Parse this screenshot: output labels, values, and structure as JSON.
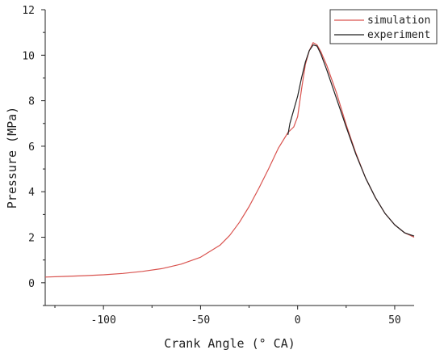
{
  "chart_data": {
    "type": "line",
    "title": "",
    "xlabel": "Crank Angle (° CA)",
    "ylabel": "Pressure (MPa)",
    "xlim": [
      -130,
      60
    ],
    "ylim": [
      -1,
      12
    ],
    "xticks": [
      -100,
      -50,
      0,
      50
    ],
    "xtick_labels": [
      "-100",
      "-50",
      "0",
      "50"
    ],
    "yticks": [
      0,
      2,
      4,
      6,
      8,
      10,
      12
    ],
    "ytick_labels": [
      "0",
      "2",
      "4",
      "6",
      "8",
      "10",
      "12"
    ],
    "grid": false,
    "legend_position": "top-right",
    "series": [
      {
        "name": "simulation",
        "color": "#d9534f",
        "x": [
          -130,
          -120,
          -110,
          -100,
          -90,
          -80,
          -70,
          -60,
          -50,
          -40,
          -35,
          -30,
          -25,
          -20,
          -15,
          -10,
          -5,
          -2,
          0,
          2,
          4,
          6,
          8,
          10,
          12,
          15,
          20,
          25,
          30,
          35,
          40,
          45,
          50,
          55,
          60
        ],
        "y": [
          0.25,
          0.28,
          0.31,
          0.35,
          0.41,
          0.5,
          0.62,
          0.82,
          1.12,
          1.65,
          2.08,
          2.65,
          3.35,
          4.15,
          5.0,
          5.9,
          6.6,
          6.85,
          7.3,
          8.5,
          9.6,
          10.2,
          10.55,
          10.45,
          10.15,
          9.55,
          8.35,
          6.95,
          5.7,
          4.6,
          3.75,
          3.05,
          2.55,
          2.2,
          2.0
        ]
      },
      {
        "name": "experiment",
        "color": "#222222",
        "x": [
          -5,
          -4,
          -3,
          -2,
          0,
          2,
          4,
          6,
          8,
          10,
          12,
          15,
          20,
          25,
          30,
          35,
          40,
          45,
          50,
          55,
          60
        ],
        "y": [
          6.5,
          7.0,
          7.3,
          7.6,
          8.2,
          9.0,
          9.7,
          10.2,
          10.45,
          10.4,
          10.05,
          9.35,
          8.1,
          6.85,
          5.65,
          4.6,
          3.75,
          3.05,
          2.55,
          2.2,
          2.05
        ]
      }
    ]
  }
}
